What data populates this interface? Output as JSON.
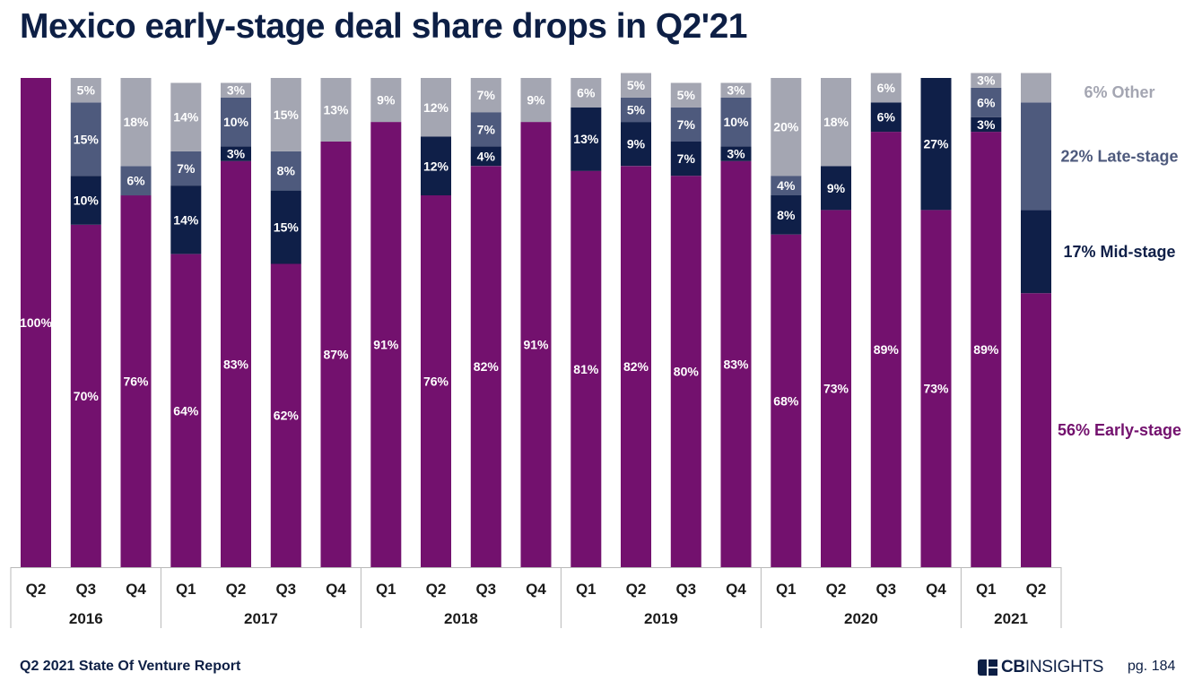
{
  "title": "Mexico early-stage deal share drops in Q2'21",
  "footer": {
    "report": "Q2 2021 State Of Venture Report",
    "logo_text": "CBINSIGHTS",
    "logo_cb": "CB",
    "logo_insights": "INSIGHTS",
    "page": "pg. 184"
  },
  "colors": {
    "early": "#73116e",
    "mid": "#0f1f48",
    "late": "#4e5a7d",
    "other": "#a4a6b2"
  },
  "chart_data": {
    "type": "bar",
    "stacked": true,
    "percent_stacked": true,
    "categories": [
      "Q2",
      "Q3",
      "Q4",
      "Q1",
      "Q2",
      "Q3",
      "Q4",
      "Q1",
      "Q2",
      "Q3",
      "Q4",
      "Q1",
      "Q2",
      "Q3",
      "Q4",
      "Q1",
      "Q2",
      "Q3",
      "Q4",
      "Q1",
      "Q2"
    ],
    "year_groups": [
      {
        "year": "2016",
        "count": 3
      },
      {
        "year": "2017",
        "count": 4
      },
      {
        "year": "2018",
        "count": 4
      },
      {
        "year": "2019",
        "count": 4
      },
      {
        "year": "2020",
        "count": 4
      },
      {
        "year": "2021",
        "count": 2
      }
    ],
    "series": [
      {
        "name": "Early-stage",
        "values": [
          100,
          70,
          76,
          64,
          83,
          62,
          87,
          91,
          76,
          82,
          91,
          81,
          82,
          80,
          83,
          68,
          73,
          89,
          73,
          89,
          56
        ],
        "labels": [
          "100%",
          "70%",
          "76%",
          "64%",
          "83%",
          "62%",
          "87%",
          "91%",
          "76%",
          "82%",
          "91%",
          "81%",
          "82%",
          "80%",
          "83%",
          "68%",
          "73%",
          "89%",
          "73%",
          "89%",
          ""
        ]
      },
      {
        "name": "Mid-stage",
        "values": [
          0,
          10,
          0,
          14,
          3,
          15,
          0,
          0,
          12,
          4,
          0,
          13,
          9,
          7,
          3,
          8,
          9,
          6,
          27,
          3,
          17
        ],
        "labels": [
          "",
          "10%",
          "",
          "14%",
          "3%",
          "15%",
          "",
          "",
          "12%",
          "4%",
          "",
          "13%",
          "9%",
          "7%",
          "3%",
          "8%",
          "9%",
          "6%",
          "27%",
          "3%",
          ""
        ]
      },
      {
        "name": "Late-stage",
        "values": [
          0,
          15,
          6,
          7,
          10,
          8,
          0,
          0,
          0,
          7,
          0,
          0,
          5,
          7,
          10,
          4,
          0,
          0,
          0,
          6,
          22
        ],
        "labels": [
          "",
          "15%",
          "6%",
          "7%",
          "10%",
          "8%",
          "",
          "",
          "",
          "7%",
          "",
          "",
          "5%",
          "7%",
          "10%",
          "4%",
          "",
          "",
          "",
          "6%",
          ""
        ]
      },
      {
        "name": "Other",
        "values": [
          0,
          5,
          18,
          14,
          3,
          15,
          13,
          9,
          12,
          7,
          9,
          6,
          5,
          5,
          3,
          20,
          18,
          6,
          0,
          3,
          6
        ],
        "labels": [
          "",
          "5%",
          "18%",
          "14%",
          "3%",
          "15%",
          "13%",
          "9%",
          "12%",
          "7%",
          "9%",
          "6%",
          "5%",
          "5%",
          "3%",
          "20%",
          "18%",
          "6%",
          "",
          "3%",
          ""
        ]
      }
    ],
    "legend": [
      {
        "label": "6% Other",
        "series": "Other"
      },
      {
        "label": "22% Late-stage",
        "series": "Late-stage"
      },
      {
        "label": "17% Mid-stage",
        "series": "Mid-stage"
      },
      {
        "label": "56% Early-stage",
        "series": "Early-stage"
      }
    ],
    "legend_placement": "right",
    "ylim": [
      0,
      100
    ]
  }
}
